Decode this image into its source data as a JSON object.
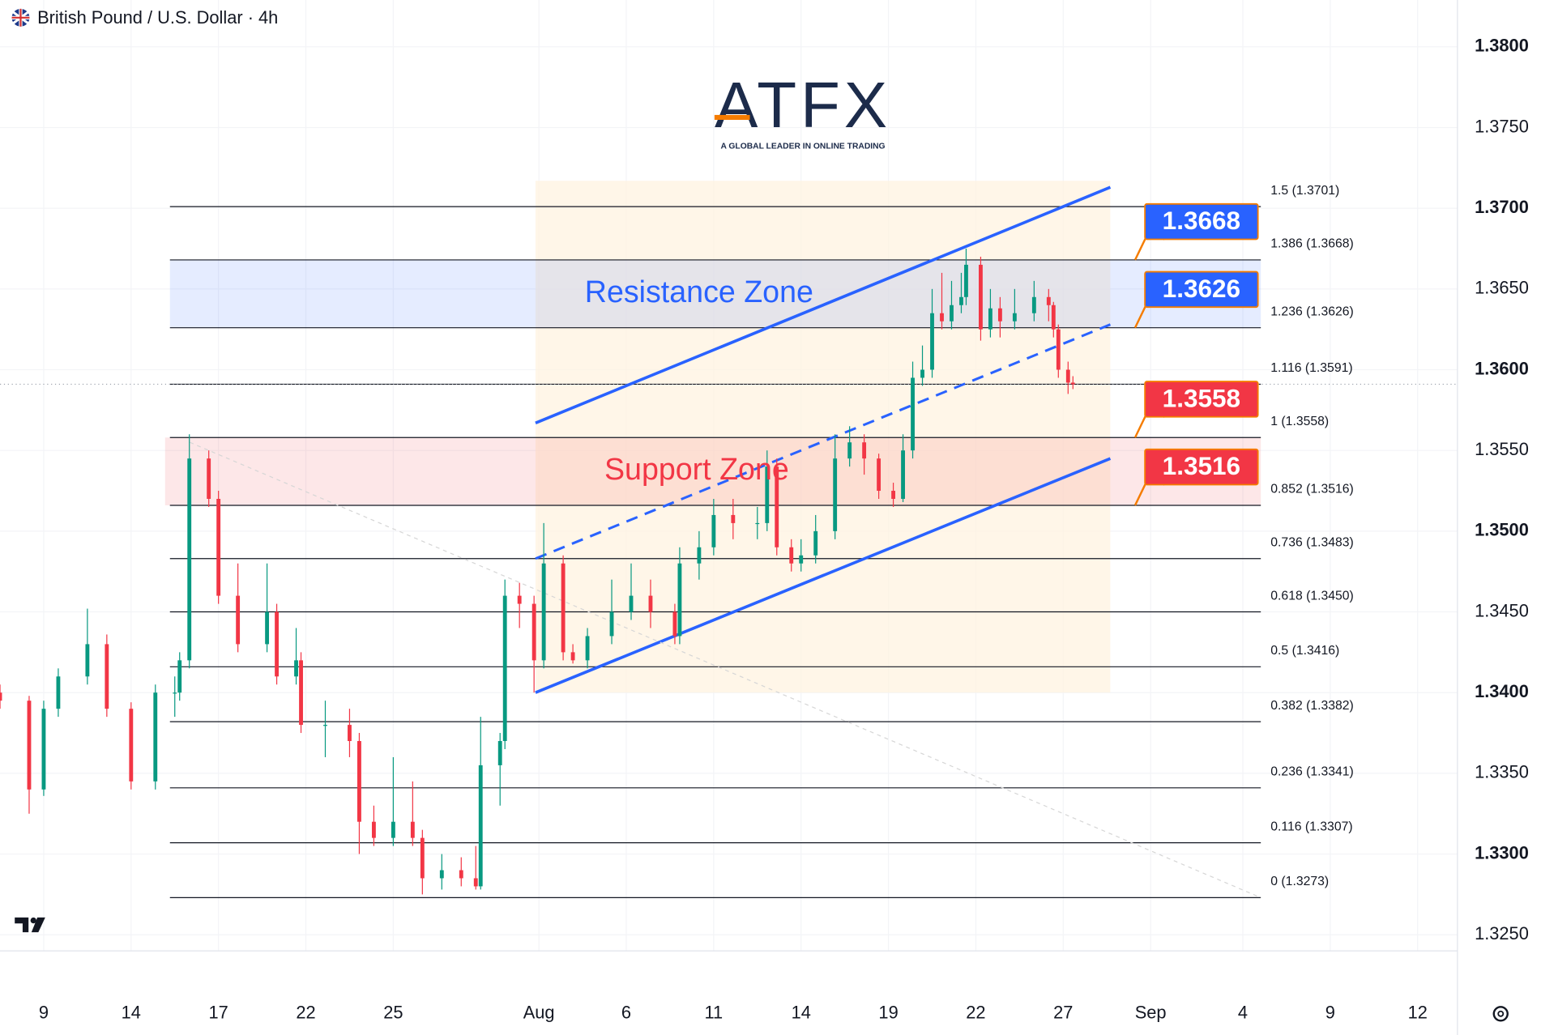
{
  "chart_data": {
    "type": "candlestick",
    "title": "British Pound / U.S. Dollar · 4h",
    "logo": {
      "name": "ATFX",
      "tagline": "A GLOBAL LEADER IN ONLINE TRADING"
    },
    "up_color": "#089981",
    "down_color": "#f23645",
    "xlim": [
      0,
      300
    ],
    "xticks": [
      {
        "value": 9,
        "label": "9"
      },
      {
        "value": 27,
        "label": "14"
      },
      {
        "value": 45,
        "label": "17"
      },
      {
        "value": 63,
        "label": "22"
      },
      {
        "value": 81,
        "label": "25"
      },
      {
        "value": 111,
        "label": "Aug"
      },
      {
        "value": 129,
        "label": "6"
      },
      {
        "value": 147,
        "label": "11"
      },
      {
        "value": 165,
        "label": "14"
      },
      {
        "value": 183,
        "label": "19"
      },
      {
        "value": 201,
        "label": "22"
      },
      {
        "value": 219,
        "label": "27"
      },
      {
        "value": 237,
        "label": "Sep"
      },
      {
        "value": 256,
        "label": "4"
      },
      {
        "value": 274,
        "label": "9"
      },
      {
        "value": 292,
        "label": "12"
      }
    ],
    "ylim": [
      1.324,
      1.3829
    ],
    "yticks": [
      {
        "value": 1.325,
        "label": "1.3250"
      },
      {
        "value": 1.33,
        "label": "1.3300"
      },
      {
        "value": 1.335,
        "label": "1.3350"
      },
      {
        "value": 1.34,
        "label": "1.3400"
      },
      {
        "value": 1.345,
        "label": "1.3450"
      },
      {
        "value": 1.35,
        "label": "1.3500"
      },
      {
        "value": 1.355,
        "label": "1.3550"
      },
      {
        "value": 1.36,
        "label": "1.3600"
      },
      {
        "value": 1.365,
        "label": "1.3650"
      },
      {
        "value": 1.37,
        "label": "1.3700"
      },
      {
        "value": 1.375,
        "label": "1.3750"
      },
      {
        "value": 1.38,
        "label": "1.3800"
      }
    ],
    "last_price": 1.3591,
    "candles": [
      {
        "x": 0,
        "open": 1.34,
        "high": 1.3405,
        "low": 1.339,
        "close": 1.3395
      },
      {
        "x": 6,
        "open": 1.3395,
        "high": 1.3398,
        "low": 1.3325,
        "close": 1.334
      },
      {
        "x": 9,
        "open": 1.334,
        "high": 1.3395,
        "low": 1.3336,
        "close": 1.339
      },
      {
        "x": 12,
        "open": 1.339,
        "high": 1.3415,
        "low": 1.3385,
        "close": 1.341
      },
      {
        "x": 18,
        "open": 1.341,
        "high": 1.3452,
        "low": 1.3405,
        "close": 1.343
      },
      {
        "x": 22,
        "open": 1.343,
        "high": 1.3436,
        "low": 1.3385,
        "close": 1.339
      },
      {
        "x": 27,
        "open": 1.339,
        "high": 1.3394,
        "low": 1.334,
        "close": 1.3345
      },
      {
        "x": 32,
        "open": 1.3345,
        "high": 1.3405,
        "low": 1.334,
        "close": 1.34
      },
      {
        "x": 36,
        "open": 1.34,
        "high": 1.341,
        "low": 1.3385,
        "close": 1.34
      },
      {
        "x": 37,
        "open": 1.34,
        "high": 1.3425,
        "low": 1.3395,
        "close": 1.342
      },
      {
        "x": 39,
        "open": 1.342,
        "high": 1.356,
        "low": 1.3415,
        "close": 1.3545
      },
      {
        "x": 43,
        "open": 1.3545,
        "high": 1.355,
        "low": 1.3515,
        "close": 1.352
      },
      {
        "x": 45,
        "open": 1.352,
        "high": 1.3525,
        "low": 1.3455,
        "close": 1.346
      },
      {
        "x": 49,
        "open": 1.346,
        "high": 1.348,
        "low": 1.3425,
        "close": 1.343
      },
      {
        "x": 55,
        "open": 1.343,
        "high": 1.348,
        "low": 1.3425,
        "close": 1.345
      },
      {
        "x": 57,
        "open": 1.345,
        "high": 1.3455,
        "low": 1.3405,
        "close": 1.341
      },
      {
        "x": 61,
        "open": 1.341,
        "high": 1.344,
        "low": 1.3405,
        "close": 1.342
      },
      {
        "x": 62,
        "open": 1.342,
        "high": 1.3425,
        "low": 1.3375,
        "close": 1.338
      },
      {
        "x": 67,
        "open": 1.338,
        "high": 1.3395,
        "low": 1.336,
        "close": 1.338
      },
      {
        "x": 72,
        "open": 1.338,
        "high": 1.339,
        "low": 1.336,
        "close": 1.337
      },
      {
        "x": 74,
        "open": 1.337,
        "high": 1.3375,
        "low": 1.33,
        "close": 1.332
      },
      {
        "x": 77,
        "open": 1.332,
        "high": 1.333,
        "low": 1.3305,
        "close": 1.331
      },
      {
        "x": 81,
        "open": 1.331,
        "high": 1.336,
        "low": 1.3305,
        "close": 1.332
      },
      {
        "x": 85,
        "open": 1.332,
        "high": 1.3345,
        "low": 1.3305,
        "close": 1.331
      },
      {
        "x": 87,
        "open": 1.331,
        "high": 1.3315,
        "low": 1.3275,
        "close": 1.3285
      },
      {
        "x": 91,
        "open": 1.3285,
        "high": 1.33,
        "low": 1.3278,
        "close": 1.329
      },
      {
        "x": 95,
        "open": 1.329,
        "high": 1.3298,
        "low": 1.328,
        "close": 1.3285
      },
      {
        "x": 98,
        "open": 1.3285,
        "high": 1.3305,
        "low": 1.3278,
        "close": 1.328
      },
      {
        "x": 99,
        "open": 1.328,
        "high": 1.3385,
        "low": 1.3278,
        "close": 1.3355
      },
      {
        "x": 103,
        "open": 1.3355,
        "high": 1.3375,
        "low": 1.333,
        "close": 1.337
      },
      {
        "x": 104,
        "open": 1.337,
        "high": 1.347,
        "low": 1.3365,
        "close": 1.346
      },
      {
        "x": 107,
        "open": 1.346,
        "high": 1.3468,
        "low": 1.344,
        "close": 1.3455
      },
      {
        "x": 110,
        "open": 1.3455,
        "high": 1.346,
        "low": 1.34,
        "close": 1.342
      },
      {
        "x": 112,
        "open": 1.342,
        "high": 1.3505,
        "low": 1.3415,
        "close": 1.348
      },
      {
        "x": 116,
        "open": 1.348,
        "high": 1.3485,
        "low": 1.342,
        "close": 1.3425
      },
      {
        "x": 118,
        "open": 1.3425,
        "high": 1.343,
        "low": 1.3418,
        "close": 1.342
      },
      {
        "x": 121,
        "open": 1.342,
        "high": 1.344,
        "low": 1.3415,
        "close": 1.3435
      },
      {
        "x": 126,
        "open": 1.3435,
        "high": 1.347,
        "low": 1.343,
        "close": 1.345
      },
      {
        "x": 130,
        "open": 1.345,
        "high": 1.348,
        "low": 1.3445,
        "close": 1.346
      },
      {
        "x": 134,
        "open": 1.346,
        "high": 1.347,
        "low": 1.344,
        "close": 1.345
      },
      {
        "x": 139,
        "open": 1.345,
        "high": 1.3455,
        "low": 1.343,
        "close": 1.3435
      },
      {
        "x": 140,
        "open": 1.3435,
        "high": 1.349,
        "low": 1.343,
        "close": 1.348
      },
      {
        "x": 144,
        "open": 1.348,
        "high": 1.35,
        "low": 1.347,
        "close": 1.349
      },
      {
        "x": 147,
        "open": 1.349,
        "high": 1.352,
        "low": 1.3485,
        "close": 1.351
      },
      {
        "x": 151,
        "open": 1.351,
        "high": 1.352,
        "low": 1.3495,
        "close": 1.3505
      },
      {
        "x": 156,
        "open": 1.3505,
        "high": 1.3515,
        "low": 1.3495,
        "close": 1.3505
      },
      {
        "x": 158,
        "open": 1.3505,
        "high": 1.355,
        "low": 1.35,
        "close": 1.354
      },
      {
        "x": 160,
        "open": 1.354,
        "high": 1.3545,
        "low": 1.3485,
        "close": 1.349
      },
      {
        "x": 163,
        "open": 1.349,
        "high": 1.3495,
        "low": 1.3475,
        "close": 1.348
      },
      {
        "x": 165,
        "open": 1.348,
        "high": 1.3495,
        "low": 1.3475,
        "close": 1.3485
      },
      {
        "x": 168,
        "open": 1.3485,
        "high": 1.351,
        "low": 1.348,
        "close": 1.35
      },
      {
        "x": 172,
        "open": 1.35,
        "high": 1.356,
        "low": 1.3495,
        "close": 1.3545
      },
      {
        "x": 175,
        "open": 1.3545,
        "high": 1.3565,
        "low": 1.354,
        "close": 1.3555
      },
      {
        "x": 178,
        "open": 1.3555,
        "high": 1.356,
        "low": 1.3535,
        "close": 1.3545
      },
      {
        "x": 181,
        "open": 1.3545,
        "high": 1.3548,
        "low": 1.352,
        "close": 1.3525
      },
      {
        "x": 184,
        "open": 1.3525,
        "high": 1.353,
        "low": 1.3515,
        "close": 1.352
      },
      {
        "x": 186,
        "open": 1.352,
        "high": 1.356,
        "low": 1.3518,
        "close": 1.355
      },
      {
        "x": 188,
        "open": 1.355,
        "high": 1.3605,
        "low": 1.3545,
        "close": 1.3595
      },
      {
        "x": 190,
        "open": 1.3595,
        "high": 1.3615,
        "low": 1.359,
        "close": 1.36
      },
      {
        "x": 192,
        "open": 1.36,
        "high": 1.365,
        "low": 1.3595,
        "close": 1.3635
      },
      {
        "x": 194,
        "open": 1.3635,
        "high": 1.366,
        "low": 1.3625,
        "close": 1.363
      },
      {
        "x": 196,
        "open": 1.363,
        "high": 1.3655,
        "low": 1.3625,
        "close": 1.364
      },
      {
        "x": 198,
        "open": 1.364,
        "high": 1.366,
        "low": 1.3635,
        "close": 1.3645
      },
      {
        "x": 199,
        "open": 1.3645,
        "high": 1.3675,
        "low": 1.364,
        "close": 1.3665
      },
      {
        "x": 202,
        "open": 1.3665,
        "high": 1.367,
        "low": 1.3618,
        "close": 1.3625
      },
      {
        "x": 204,
        "open": 1.3625,
        "high": 1.365,
        "low": 1.362,
        "close": 1.3638
      },
      {
        "x": 206,
        "open": 1.3638,
        "high": 1.3645,
        "low": 1.362,
        "close": 1.363
      },
      {
        "x": 209,
        "open": 1.363,
        "high": 1.365,
        "low": 1.3625,
        "close": 1.3635
      },
      {
        "x": 213,
        "open": 1.3635,
        "high": 1.3655,
        "low": 1.363,
        "close": 1.3645
      },
      {
        "x": 216,
        "open": 1.3645,
        "high": 1.365,
        "low": 1.363,
        "close": 1.364
      },
      {
        "x": 217,
        "open": 1.364,
        "high": 1.3642,
        "low": 1.362,
        "close": 1.3625
      },
      {
        "x": 218,
        "open": 1.3625,
        "high": 1.3628,
        "low": 1.3595,
        "close": 1.36
      },
      {
        "x": 220,
        "open": 1.36,
        "high": 1.3605,
        "low": 1.3585,
        "close": 1.3592
      },
      {
        "x": 221,
        "open": 1.3592,
        "high": 1.3596,
        "low": 1.3588,
        "close": 1.3591
      }
    ],
    "channel_fill": {
      "x": [
        110.3,
        228.7
      ],
      "y": [
        1.34,
        1.3717
      ],
      "color": "#fff3e0"
    },
    "trend_lines": [
      {
        "x": [
          110.3,
          228.7
        ],
        "y": [
          1.3567,
          1.3713
        ],
        "color": "#2962ff",
        "dashed": false
      },
      {
        "x": [
          110.3,
          228.7
        ],
        "y": [
          1.34,
          1.3545
        ],
        "color": "#2962ff",
        "dashed": false
      },
      {
        "x": [
          110.3,
          228.7
        ],
        "y": [
          1.3483,
          1.3628
        ],
        "color": "#2962ff",
        "dashed": true
      },
      {
        "x": [
          39.1,
          259.7
        ],
        "y": [
          1.3555,
          1.3273
        ],
        "color": "#d6d6d6",
        "dashed": true
      }
    ],
    "zones": [
      {
        "label": "Resistance Zone",
        "low": 1.3626,
        "high": 1.3668,
        "x": [
          35,
          259.7
        ],
        "color": "#2962ff"
      },
      {
        "label": "Support Zone",
        "low": 1.3516,
        "high": 1.3558,
        "x": [
          34,
          259.7
        ],
        "color": "#f23645"
      }
    ],
    "fib_x": [
      35,
      259.7
    ],
    "fib_levels": [
      {
        "label": "1.5 (1.3701)",
        "value": 1.3701
      },
      {
        "label": "1.386 (1.3668)",
        "value": 1.3668
      },
      {
        "label": "1.236 (1.3626)",
        "value": 1.3626
      },
      {
        "label": "1.116 (1.3591)",
        "value": 1.3591
      },
      {
        "label": "1 (1.3558)",
        "value": 1.3558
      },
      {
        "label": "0.852 (1.3516)",
        "value": 1.3516
      },
      {
        "label": "0.736 (1.3483)",
        "value": 1.3483
      },
      {
        "label": "0.618 (1.3450)",
        "value": 1.345
      },
      {
        "label": "0.5 (1.3416)",
        "value": 1.3416
      },
      {
        "label": "0.382 (1.3382)",
        "value": 1.3382
      },
      {
        "label": "0.236 (1.3341)",
        "value": 1.3341
      },
      {
        "label": "0.116 (1.3307)",
        "value": 1.3307
      },
      {
        "label": "0 (1.3273)",
        "value": 1.3273
      }
    ],
    "price_labels": [
      {
        "value": 1.3668,
        "color": "#2962ff"
      },
      {
        "value": 1.3626,
        "color": "#2962ff"
      },
      {
        "value": 1.3558,
        "color": "#f23645"
      },
      {
        "value": 1.3516,
        "color": "#f23645"
      }
    ]
  }
}
